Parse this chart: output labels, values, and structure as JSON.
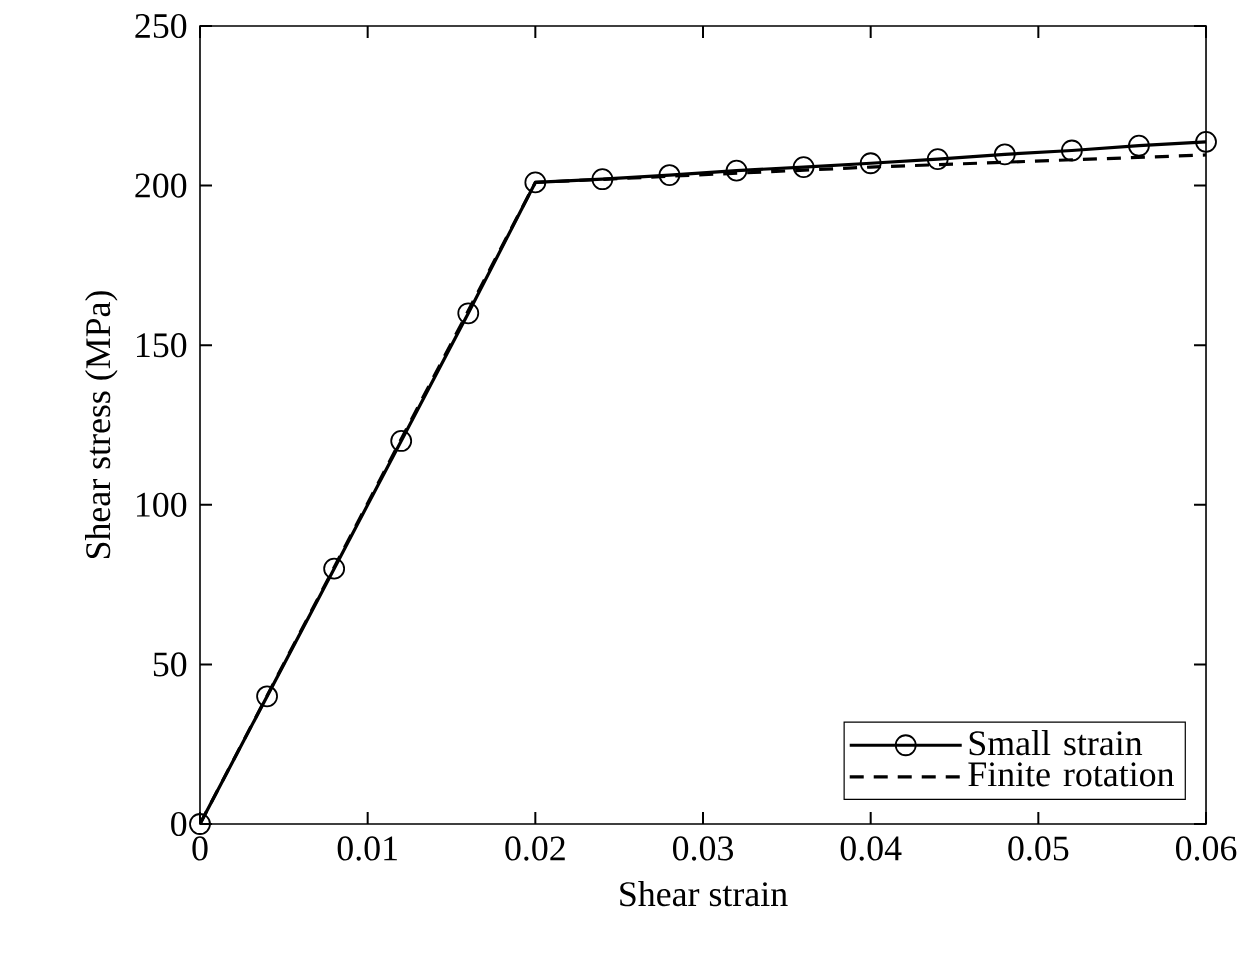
{
  "chart_data": {
    "type": "line",
    "xlabel": "Shear strain",
    "ylabel": "Shear stress (MPa)",
    "xlim": [
      0,
      0.06
    ],
    "ylim": [
      0,
      250
    ],
    "xticks": [
      0,
      0.01,
      0.02,
      0.03,
      0.04,
      0.05,
      0.06
    ],
    "yticks": [
      0,
      50,
      100,
      150,
      200,
      250
    ],
    "legend": "bottom right",
    "series": [
      {
        "name": "Small strain",
        "color": "#000000",
        "marker": "circle",
        "line_style": "solid",
        "x": [
          0,
          0.004,
          0.008,
          0.012,
          0.016,
          0.02,
          0.024,
          0.028,
          0.032,
          0.036,
          0.04,
          0.044,
          0.048,
          0.052,
          0.056,
          0.06
        ],
        "values": [
          0,
          40,
          80,
          120,
          160,
          201,
          202,
          203.3,
          204.7,
          205.8,
          207,
          208.3,
          209.8,
          211,
          212.5,
          213.7
        ]
      },
      {
        "name": "Finite rotation",
        "color": "#000000",
        "marker": "none",
        "line_style": "dashed",
        "x": [
          0,
          0.02,
          0.04,
          0.06
        ],
        "values": [
          0,
          201,
          205.8,
          209.6
        ]
      }
    ]
  }
}
